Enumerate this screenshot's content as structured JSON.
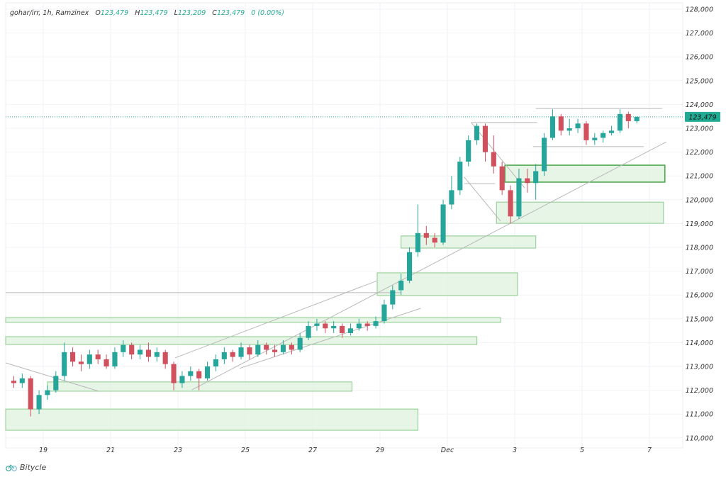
{
  "header": {
    "symbol": "gohar/irr, 1h, Ramzinex",
    "o_label": "O",
    "o": "123,479",
    "h_label": "H",
    "h": "123,479",
    "l_label": "L",
    "l": "123,209",
    "c_label": "C",
    "c": "123,479",
    "change": "0 (0.00%)"
  },
  "brand": {
    "name": "Bitycle",
    "icon": "bicycle-icon"
  },
  "colors": {
    "up": "#26a69a",
    "down": "#d0505e",
    "zone_fill": "#e3f3e3",
    "zone_border": "#94cf94",
    "zone_border_strong": "#4ea84e",
    "line": "#b8b8b8",
    "last_price": "#22ab94"
  },
  "chart_data": {
    "type": "candlestick",
    "title": "",
    "ylim": [
      110000,
      128000
    ],
    "y_ticks": [
      "110,000",
      "111,000",
      "112,000",
      "113,000",
      "114,000",
      "115,000",
      "116,000",
      "117,000",
      "118,000",
      "119,000",
      "120,000",
      "121,000",
      "122,000",
      "123,000",
      "124,000",
      "125,000",
      "126,000",
      "127,000",
      "128,000"
    ],
    "x_ticks": [
      {
        "label": "19",
        "t": "11-19 00:00"
      },
      {
        "label": "21",
        "t": "11-21 00:00"
      },
      {
        "label": "23",
        "t": "11-23 00:00"
      },
      {
        "label": "25",
        "t": "11-25 00:00"
      },
      {
        "label": "27",
        "t": "11-27 00:00"
      },
      {
        "label": "29",
        "t": "11-29 00:00"
      },
      {
        "label": "Dec",
        "t": "12-01 00:00"
      },
      {
        "label": "3",
        "t": "12-03 00:00"
      },
      {
        "label": "5",
        "t": "12-05 00:00"
      },
      {
        "label": "7",
        "t": "12-07 00:00"
      }
    ],
    "grid": true,
    "last_price": 123479,
    "last_price_label": "123,479",
    "candles": [
      [
        "11-18 00:00",
        112400,
        112600,
        112100,
        112300
      ],
      [
        "11-18 06:00",
        112300,
        112700,
        112100,
        112500
      ],
      [
        "11-18 12:00",
        112500,
        112600,
        110900,
        111200
      ],
      [
        "11-18 18:00",
        111200,
        112000,
        111000,
        111800
      ],
      [
        "11-19 00:00",
        111800,
        112200,
        111600,
        112000
      ],
      [
        "11-19 06:00",
        112000,
        112800,
        111900,
        112600
      ],
      [
        "11-19 12:00",
        112600,
        114000,
        112400,
        113600
      ],
      [
        "11-19 18:00",
        113600,
        113800,
        113000,
        113200
      ],
      [
        "11-20 00:00",
        113200,
        113500,
        112800,
        113100
      ],
      [
        "11-20 06:00",
        113100,
        113700,
        112900,
        113500
      ],
      [
        "11-20 12:00",
        113500,
        113700,
        113100,
        113300
      ],
      [
        "11-20 18:00",
        113300,
        113500,
        112900,
        113000
      ],
      [
        "11-21 00:00",
        113000,
        113800,
        112900,
        113600
      ],
      [
        "11-21 06:00",
        113600,
        114100,
        113400,
        113900
      ],
      [
        "11-21 12:00",
        113900,
        114000,
        113300,
        113500
      ],
      [
        "11-21 18:00",
        113500,
        113900,
        113300,
        113700
      ],
      [
        "11-22 00:00",
        113700,
        114000,
        113200,
        113400
      ],
      [
        "11-22 06:00",
        113400,
        113800,
        113200,
        113600
      ],
      [
        "11-22 12:00",
        113600,
        113700,
        112900,
        113100
      ],
      [
        "11-22 18:00",
        113100,
        113200,
        112000,
        112300
      ],
      [
        "11-23 00:00",
        112300,
        112800,
        112100,
        112600
      ],
      [
        "11-23 06:00",
        112600,
        113000,
        112400,
        112800
      ],
      [
        "11-23 12:00",
        112800,
        112900,
        112000,
        112500
      ],
      [
        "11-23 18:00",
        112500,
        113200,
        112400,
        113000
      ],
      [
        "11-24 00:00",
        113000,
        113500,
        112800,
        113300
      ],
      [
        "11-24 06:00",
        113300,
        113800,
        113100,
        113600
      ],
      [
        "11-24 12:00",
        113600,
        113700,
        113200,
        113400
      ],
      [
        "11-24 18:00",
        113400,
        114000,
        113300,
        113800
      ],
      [
        "11-25 00:00",
        113800,
        113900,
        113300,
        113500
      ],
      [
        "11-25 06:00",
        113500,
        114100,
        113400,
        113900
      ],
      [
        "11-25 12:00",
        113900,
        114000,
        113500,
        113700
      ],
      [
        "11-25 18:00",
        113700,
        113900,
        113400,
        113600
      ],
      [
        "11-26 00:00",
        113600,
        114100,
        113500,
        113900
      ],
      [
        "11-26 06:00",
        113900,
        114000,
        113500,
        113700
      ],
      [
        "11-26 12:00",
        113700,
        114400,
        113600,
        114200
      ],
      [
        "11-26 18:00",
        114200,
        114900,
        114100,
        114700
      ],
      [
        "11-27 00:00",
        114700,
        115000,
        114500,
        114800
      ],
      [
        "11-27 06:00",
        114800,
        114900,
        114400,
        114600
      ],
      [
        "11-27 12:00",
        114600,
        114900,
        114400,
        114700
      ],
      [
        "11-27 18:00",
        114700,
        114800,
        114200,
        114400
      ],
      [
        "11-28 00:00",
        114400,
        114800,
        114300,
        114600
      ],
      [
        "11-28 06:00",
        114600,
        115000,
        114500,
        114800
      ],
      [
        "11-28 12:00",
        114800,
        114900,
        114500,
        114700
      ],
      [
        "11-28 18:00",
        114700,
        115100,
        114600,
        114900
      ],
      [
        "11-29 00:00",
        114900,
        115800,
        114800,
        115600
      ],
      [
        "11-29 06:00",
        115600,
        116400,
        115400,
        116200
      ],
      [
        "11-29 12:00",
        116200,
        116900,
        116000,
        116600
      ],
      [
        "11-29 18:00",
        116600,
        118000,
        116500,
        117800
      ],
      [
        "11-30 00:00",
        117800,
        119800,
        117600,
        118600
      ],
      [
        "11-30 06:00",
        118600,
        118900,
        118100,
        118400
      ],
      [
        "11-30 12:00",
        118400,
        118600,
        118000,
        118200
      ],
      [
        "11-30 18:00",
        118200,
        120000,
        118100,
        119800
      ],
      [
        "12-01 00:00",
        119800,
        121000,
        119600,
        120400
      ],
      [
        "12-01 06:00",
        120400,
        121800,
        120200,
        121600
      ],
      [
        "12-01 12:00",
        121600,
        122700,
        121400,
        122500
      ],
      [
        "12-01 18:00",
        122500,
        123200,
        122300,
        123100
      ],
      [
        "12-02 00:00",
        123100,
        123200,
        121600,
        122000
      ],
      [
        "12-02 06:00",
        122000,
        122700,
        121100,
        121400
      ],
      [
        "12-02 12:00",
        121400,
        121600,
        120200,
        120400
      ],
      [
        "12-02 18:00",
        120400,
        120600,
        119000,
        119300
      ],
      [
        "12-03 00:00",
        119300,
        121300,
        119200,
        120900
      ],
      [
        "12-03 06:00",
        120900,
        121300,
        120300,
        120700
      ],
      [
        "12-03 12:00",
        120700,
        121500,
        120000,
        121200
      ],
      [
        "12-03 18:00",
        121200,
        122800,
        121000,
        122600
      ],
      [
        "12-04 00:00",
        122600,
        123800,
        122500,
        123500
      ],
      [
        "12-04 06:00",
        123500,
        123600,
        122700,
        122900
      ],
      [
        "12-04 12:00",
        122900,
        123400,
        122700,
        123000
      ],
      [
        "12-04 18:00",
        123000,
        123400,
        122800,
        123200
      ],
      [
        "12-05 00:00",
        123200,
        123300,
        122300,
        122500
      ],
      [
        "12-05 06:00",
        122500,
        122800,
        122300,
        122600
      ],
      [
        "12-05 12:00",
        122600,
        122900,
        122400,
        122800
      ],
      [
        "12-05 18:00",
        122800,
        123100,
        122700,
        122900
      ],
      [
        "12-06 00:00",
        122900,
        123800,
        122800,
        123600
      ],
      [
        "12-06 06:00",
        123600,
        123700,
        123000,
        123300
      ],
      [
        "12-06 12:00",
        123300,
        123500,
        123209,
        123479
      ]
    ],
    "zones": [
      {
        "t1": "11-17 21:00",
        "t2": "11-30 03:00",
        "p1": 111210,
        "p2": 110320,
        "strong": false
      },
      {
        "t1": "11-19 03:00",
        "t2": "11-28 04:00",
        "p1": 112350,
        "p2": 111960,
        "strong": false
      },
      {
        "t1": "11-17 21:00",
        "t2": "12-01 21:00",
        "p1": 114250,
        "p2": 113920,
        "strong": false
      },
      {
        "t1": "11-17 21:00",
        "t2": "12-02 14:00",
        "p1": 115050,
        "p2": 114850,
        "strong": false
      },
      {
        "t1": "11-28 22:00",
        "t2": "12-03 02:00",
        "p1": 116930,
        "p2": 115980,
        "strong": false
      },
      {
        "t1": "11-29 15:00",
        "t2": "12-03 15:00",
        "p1": 118480,
        "p2": 117970,
        "strong": false
      },
      {
        "t1": "12-02 11:00",
        "t2": "12-07 10:00",
        "p1": 119900,
        "p2": 119010,
        "strong": false
      },
      {
        "t1": "12-02 17:00",
        "t2": "12-07 11:00",
        "p1": 121450,
        "p2": 120740,
        "strong": true
      }
    ],
    "lines": [
      {
        "t1": "11-17 21:00",
        "p1": 116100,
        "t2": "11-29 15:00",
        "p2": 116100
      },
      {
        "t1": "11-23 10:00",
        "p1": 112020,
        "t2": "12-07 12:00",
        "p2": 122430
      },
      {
        "t1": "11-22 22:00",
        "p1": 113360,
        "t2": "11-28 22:00",
        "p2": 116600
      },
      {
        "t1": "11-24 20:00",
        "p1": 112920,
        "t2": "11-30 05:00",
        "p2": 115440
      },
      {
        "t1": "11-17 21:00",
        "p1": 113150,
        "t2": "11-20 16:00",
        "p2": 111950
      },
      {
        "t1": "12-01 17:00",
        "p1": 123240,
        "t2": "12-03 16:00",
        "p2": 123240
      },
      {
        "t1": "12-01 17:00",
        "p1": 123240,
        "t2": "12-03 07:00",
        "p2": 120500
      },
      {
        "t1": "12-01 12:00",
        "p1": 120950,
        "t2": "12-02 14:00",
        "p2": 119100
      },
      {
        "t1": "12-01 12:00",
        "p1": 120680,
        "t2": "12-02 10:00",
        "p2": 120680
      },
      {
        "t1": "12-03 15:00",
        "p1": 123830,
        "t2": "12-07 09:00",
        "p2": 123830
      },
      {
        "t1": "12-03 13:00",
        "p1": 122230,
        "t2": "12-06 20:00",
        "p2": 122230
      }
    ]
  }
}
